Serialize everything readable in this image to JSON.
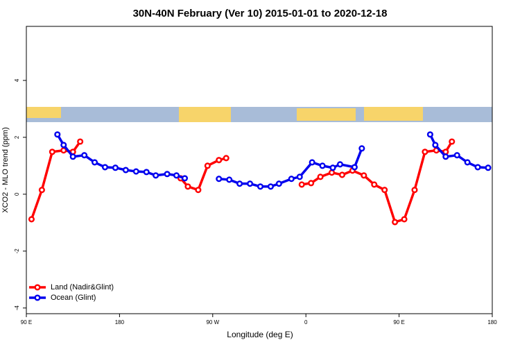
{
  "chart_data": {
    "type": "line",
    "title": "30N-40N February (Ver 10)   2015-01-01 to 2020-12-18",
    "x_label": "Longitude (deg E)",
    "y_label": "XCO2 - MLO trend (ppm)",
    "xlim": [
      90,
      540
    ],
    "ylim": [
      -4.2,
      5.9
    ],
    "xticks": [
      {
        "value": 90,
        "label": "90 E"
      },
      180,
      {
        "value": 270,
        "label": "90 W"
      },
      {
        "value": 360,
        "label": "0"
      },
      {
        "value": 450,
        "label": "90 E"
      },
      {
        "value": 540,
        "label": "180"
      }
    ],
    "yticks": [
      -4,
      -2,
      0,
      2,
      4
    ],
    "legend": "bottomleft",
    "series": [
      {
        "name": "Land (Nadir&Glint)",
        "color": "#ff0000",
        "x": [
          95,
          105,
          115,
          126,
          135,
          142,
          null,
          239,
          246,
          256,
          265,
          276,
          283,
          null,
          356,
          365,
          374,
          385,
          395,
          405,
          416,
          426,
          436,
          446,
          455,
          465,
          475,
          486,
          495,
          501
        ],
        "values": [
          -0.88,
          0.15,
          1.49,
          1.54,
          1.49,
          1.85,
          null,
          0.56,
          0.27,
          0.15,
          1.0,
          1.2,
          1.27,
          null,
          0.34,
          0.39,
          0.61,
          0.76,
          0.68,
          0.83,
          0.66,
          0.34,
          0.15,
          -0.98,
          -0.88,
          0.15,
          1.49,
          1.54,
          1.49,
          1.85
        ]
      },
      {
        "name": "Ocean (Glint)",
        "color": "#0000ee",
        "x": [
          120,
          126,
          135,
          146,
          156,
          166,
          176,
          186,
          196,
          206,
          215,
          226,
          235,
          243,
          null,
          276,
          286,
          296,
          306,
          316,
          326,
          334,
          346,
          354,
          366,
          376,
          386,
          393,
          407,
          414,
          null,
          480,
          485,
          495,
          506,
          516,
          526,
          536
        ],
        "values": [
          2.1,
          1.73,
          1.32,
          1.37,
          1.12,
          0.95,
          0.93,
          0.85,
          0.8,
          0.78,
          0.66,
          0.71,
          0.66,
          0.56,
          null,
          0.54,
          0.51,
          0.37,
          0.37,
          0.27,
          0.27,
          0.37,
          0.54,
          0.61,
          1.12,
          1.0,
          0.93,
          1.05,
          0.95,
          1.61,
          null,
          2.1,
          1.73,
          1.32,
          1.37,
          1.12,
          0.95,
          0.93
        ]
      }
    ]
  }
}
